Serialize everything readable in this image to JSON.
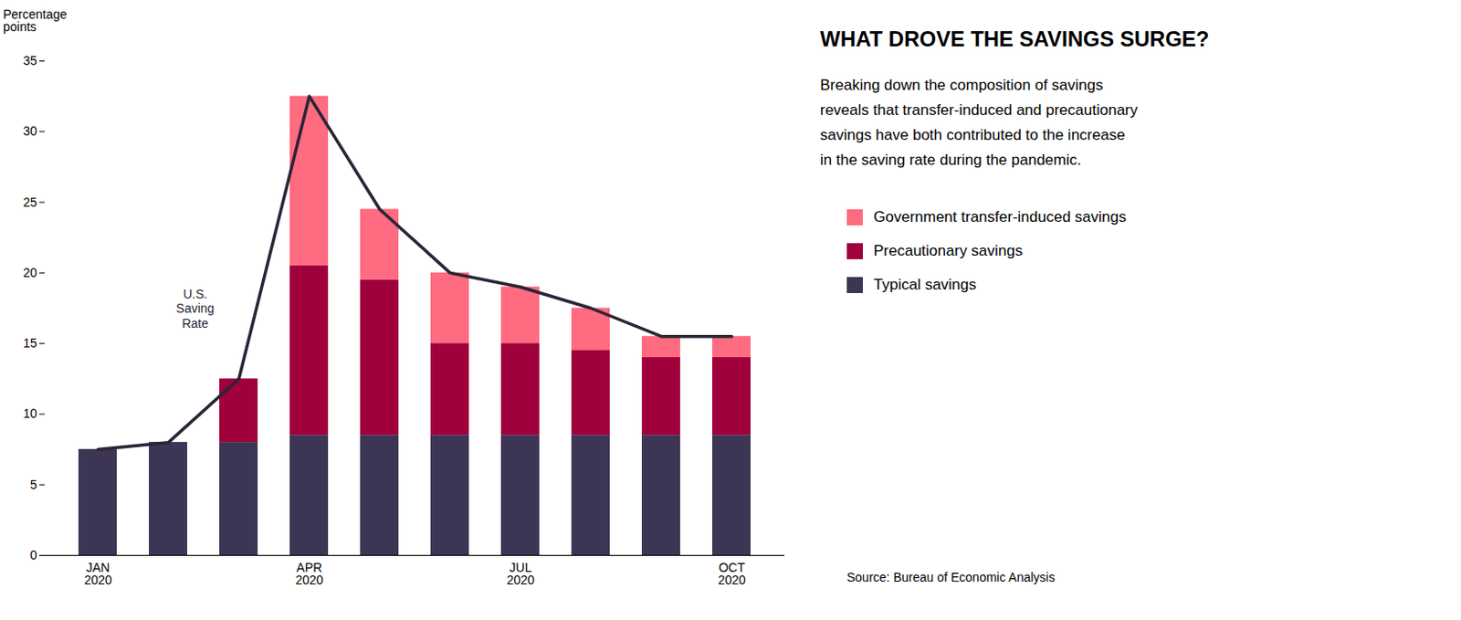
{
  "chart_data": {
    "type": "bar",
    "title": "WHAT DROVE THE SAVINGS SURGE?",
    "subtitle": "Breaking down the composition of savings\nreveals that transfer-induced and precautionary\nsavings have both contributed to the increase\nin the saving rate during the pandemic.",
    "y_label": "Percentage\npoints",
    "source": "Source: Bureau of Economic Analysis",
    "categories": [
      "JAN\n2020",
      null,
      null,
      "APR\n2020",
      null,
      null,
      "JUL\n2020",
      null,
      null,
      "OCT\n2020"
    ],
    "series": [
      {
        "name": "Typical savings",
        "color": "#3D3554",
        "values": [
          7.5,
          8.0,
          8.0,
          8.5,
          8.5,
          8.5,
          8.5,
          8.5,
          8.5,
          8.5
        ]
      },
      {
        "name": "Precautionary savings",
        "color": "#A0003C",
        "values": [
          0.0,
          0.0,
          4.5,
          12.0,
          11.0,
          6.5,
          6.5,
          6.0,
          5.5,
          5.5
        ]
      },
      {
        "name": "Government transfer-induced savings",
        "color": "#FF6B80",
        "values": [
          0.0,
          0.0,
          0.0,
          12.0,
          5.0,
          5.0,
          4.0,
          3.0,
          1.5,
          1.5
        ]
      },
      {
        "name": "U.S.\nSaving\nRate",
        "type": "line",
        "color": "#2A2535",
        "values": [
          7.5,
          8.0,
          12.5,
          32.5,
          24.5,
          20.0,
          19.0,
          17.5,
          15.5,
          15.5
        ]
      }
    ],
    "stacked": true,
    "legend": "right",
    "grid": false,
    "ylim": [
      0,
      35
    ],
    "yticks": [
      0,
      5,
      10,
      15,
      20,
      25,
      30,
      35
    ]
  }
}
